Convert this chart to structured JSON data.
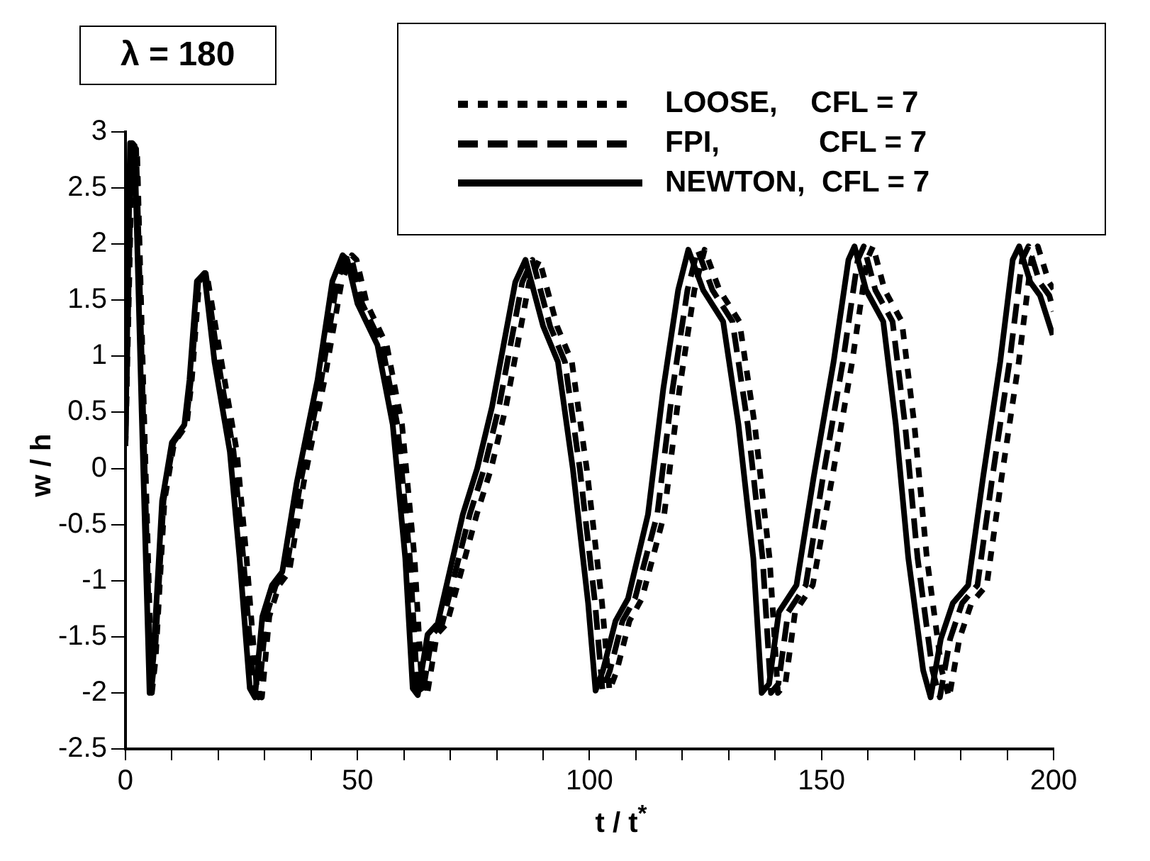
{
  "chart_data": {
    "type": "line",
    "annotations": [
      "λ = 180"
    ],
    "xlabel": "t / t$^{*}$",
    "ylabel": "w / h",
    "xlim": [
      0,
      200
    ],
    "ylim": [
      -2.5,
      3
    ],
    "xticks": [
      0,
      {
        "value": 10,
        "label": null
      },
      {
        "value": 20,
        "label": null
      },
      {
        "value": 30,
        "label": null
      },
      {
        "value": 40,
        "label": null
      },
      50,
      {
        "value": 60,
        "label": null
      },
      {
        "value": 70,
        "label": null
      },
      {
        "value": 80,
        "label": null
      },
      {
        "value": 90,
        "label": null
      },
      100,
      {
        "value": 110,
        "label": null
      },
      {
        "value": 120,
        "label": null
      },
      {
        "value": 130,
        "label": null
      },
      {
        "value": 140,
        "label": null
      },
      150,
      {
        "value": 160,
        "label": null
      },
      {
        "value": 170,
        "label": null
      },
      {
        "value": 180,
        "label": null
      },
      {
        "value": 190,
        "label": null
      },
      200
    ],
    "yticks": [
      -2.5,
      -2,
      -1.5,
      -1,
      -0.5,
      0,
      0.5,
      1,
      1.5,
      2,
      2.5,
      3
    ],
    "grid": false,
    "legend": "top right",
    "marker": "none",
    "series": [
      {
        "name": "LOOSE,    CFL = 7",
        "color": "#000000",
        "line_style": "dotted",
        "x": [
          0,
          1.5,
          2.5,
          4,
          5.7,
          6.5,
          8.4,
          10.5,
          13.2,
          14.3,
          15.9,
          17.5,
          20.7,
          24,
          26.1,
          28.3,
          29.4,
          31,
          33.1,
          35.3,
          38.4,
          42.9,
          46.6,
          48.8,
          49.8,
          52,
          56.3,
          59.6,
          62.3,
          63.9,
          65,
          67.1,
          69.3,
          75.7,
          78.8,
          82,
          87,
          89.2,
          93,
          96.2,
          99.4,
          102.7,
          104.3,
          105.9,
          108.6,
          111.3,
          116.1,
          119.4,
          122.6,
          124.8,
          128,
          132.3,
          135.6,
          138.8,
          140.6,
          142.2,
          144.3,
          148.1,
          152.3,
          156.6,
          159.8,
          161.1,
          163.6,
          167.3,
          170,
          172.7,
          175.9,
          177.5,
          179.7,
          182.3,
          185.6,
          188.8,
          192.5,
          195.2,
          196.6,
          199,
          200
        ],
        "values": [
          0.2,
          2.9,
          2.85,
          0.5,
          -2.0,
          -1.7,
          -0.29,
          0.23,
          0.39,
          0.79,
          1.67,
          1.74,
          0.95,
          0.15,
          -0.8,
          -1.96,
          -2.04,
          -1.32,
          -1.04,
          -0.92,
          -0.13,
          0.79,
          1.67,
          1.9,
          1.86,
          1.47,
          1.1,
          0.39,
          -0.8,
          -1.96,
          -2.02,
          -1.48,
          -1.38,
          -0.41,
          0,
          0.55,
          1.66,
          1.86,
          1.27,
          0.95,
          0,
          -1.2,
          -1.98,
          -1.8,
          -1.36,
          -1.16,
          -0.41,
          0.71,
          1.59,
          1.95,
          1.59,
          1.31,
          0.39,
          -0.8,
          -2.0,
          -1.92,
          -1.28,
          -1.04,
          -0.08,
          0.95,
          1.86,
          1.98,
          1.59,
          1.31,
          0.39,
          -0.8,
          -1.8,
          -2.04,
          -1.52,
          -1.2,
          -1.04,
          -0.08,
          0.95,
          1.86,
          1.98,
          1.66,
          1.6
        ]
      },
      {
        "name": "FPI,            CFL = 7",
        "color": "#000000",
        "line_style": "dashed",
        "x": [
          0,
          1.3,
          2.3,
          3.8,
          5.5,
          6.3,
          8.2,
          10.3,
          13,
          14.1,
          15.7,
          17.3,
          20,
          23.3,
          25.4,
          27.6,
          28.7,
          30.3,
          32.4,
          34.6,
          37.7,
          42.2,
          45.6,
          47.8,
          48.8,
          51,
          55.3,
          58.6,
          61.3,
          62.9,
          64,
          66.1,
          68.3,
          74.2,
          77.3,
          80.5,
          85.5,
          87.7,
          91.5,
          94.7,
          97.9,
          101.2,
          102.8,
          104.4,
          107.1,
          109.8,
          114.6,
          117.9,
          121.1,
          123.3,
          126.5,
          130.8,
          134.1,
          137.3,
          139.1,
          140.7,
          142.8,
          146.6,
          150.3,
          154.6,
          157.8,
          159.1,
          161.6,
          165.3,
          168,
          170.7,
          173.9,
          175.5,
          177.7,
          180.3,
          183.6,
          186.8,
          190.5,
          193.2,
          194.6,
          197,
          199.1,
          200
        ],
        "values": [
          0.2,
          2.9,
          2.85,
          0.5,
          -2.0,
          -1.7,
          -0.29,
          0.23,
          0.39,
          0.79,
          1.67,
          1.74,
          0.95,
          0.15,
          -0.8,
          -1.96,
          -2.04,
          -1.32,
          -1.04,
          -0.92,
          -0.13,
          0.79,
          1.67,
          1.9,
          1.86,
          1.47,
          1.1,
          0.39,
          -0.8,
          -1.96,
          -2.02,
          -1.48,
          -1.38,
          -0.41,
          0,
          0.55,
          1.66,
          1.86,
          1.27,
          0.95,
          0,
          -1.2,
          -1.98,
          -1.8,
          -1.36,
          -1.16,
          -0.41,
          0.71,
          1.59,
          1.95,
          1.59,
          1.31,
          0.39,
          -0.8,
          -2.0,
          -1.92,
          -1.28,
          -1.04,
          -0.08,
          0.95,
          1.86,
          1.98,
          1.59,
          1.31,
          0.39,
          -0.8,
          -1.8,
          -2.04,
          -1.52,
          -1.2,
          -1.04,
          -0.08,
          0.95,
          1.86,
          1.98,
          1.66,
          1.54,
          1.4
        ]
      },
      {
        "name": "NEWTON,  CFL = 7",
        "color": "#000000",
        "line_style": "solid",
        "x": [
          0,
          1,
          2,
          3.5,
          5.2,
          6,
          7.9,
          10,
          12.7,
          13.8,
          15.4,
          17,
          19.2,
          22.5,
          24.6,
          26.8,
          27.9,
          29.5,
          31.6,
          33.8,
          36.9,
          41.4,
          44.6,
          46.8,
          47.8,
          50,
          54.3,
          57.6,
          60.3,
          61.9,
          63,
          65.1,
          67.3,
          72.7,
          75.8,
          79,
          84,
          86.2,
          90,
          93.2,
          96.4,
          99.7,
          101.3,
          102.9,
          105.6,
          108.3,
          112.6,
          115.9,
          119.1,
          121.3,
          124.5,
          128.8,
          132.1,
          135.3,
          137.1,
          138.7,
          140.8,
          144.6,
          148.3,
          152.6,
          155.8,
          157.1,
          159.6,
          163.3,
          166,
          168.7,
          171.9,
          173.5,
          175.7,
          178.3,
          181.6,
          184.8,
          188.5,
          191.2,
          192.6,
          195,
          197.1,
          199.8
        ],
        "values": [
          0.2,
          2.9,
          2.85,
          0.5,
          -2.0,
          -1.7,
          -0.29,
          0.23,
          0.39,
          0.79,
          1.67,
          1.74,
          0.95,
          0.15,
          -0.8,
          -1.96,
          -2.04,
          -1.32,
          -1.04,
          -0.92,
          -0.13,
          0.79,
          1.67,
          1.9,
          1.86,
          1.47,
          1.1,
          0.39,
          -0.8,
          -1.96,
          -2.02,
          -1.48,
          -1.38,
          -0.41,
          0,
          0.55,
          1.66,
          1.86,
          1.27,
          0.95,
          0,
          -1.2,
          -1.98,
          -1.8,
          -1.36,
          -1.16,
          -0.41,
          0.71,
          1.59,
          1.95,
          1.59,
          1.31,
          0.39,
          -0.8,
          -2.0,
          -1.92,
          -1.28,
          -1.04,
          -0.08,
          0.95,
          1.86,
          1.98,
          1.59,
          1.31,
          0.39,
          -0.8,
          -1.8,
          -2.04,
          -1.52,
          -1.2,
          -1.04,
          -0.08,
          0.95,
          1.86,
          1.98,
          1.66,
          1.54,
          1.19
        ]
      }
    ]
  }
}
